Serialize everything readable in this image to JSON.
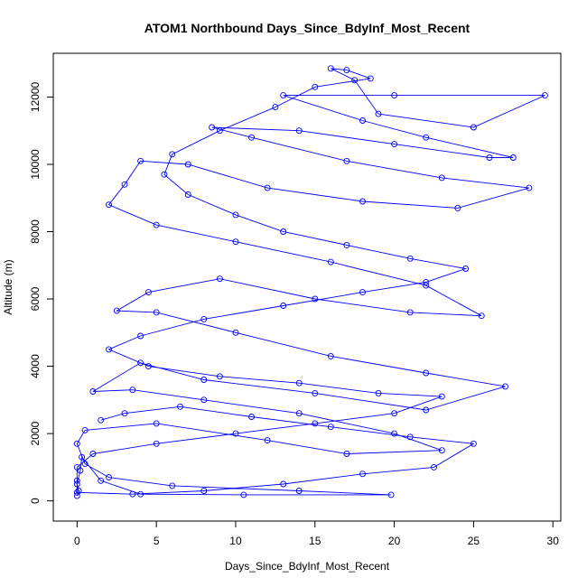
{
  "chart_data": {
    "type": "line",
    "title": "ATOM1 Northbound Days_Since_BdyInf_Most_Recent",
    "xlabel": "Days_Since_BdyInf_Most_Recent",
    "ylabel": "Altitude (m)",
    "xlim": [
      -1.5,
      30.5
    ],
    "ylim": [
      -600,
      13300
    ],
    "xticks": [
      0,
      5,
      10,
      15,
      20,
      25,
      30
    ],
    "yticks": [
      0,
      2000,
      4000,
      6000,
      8000,
      10000,
      12000
    ],
    "grid": false,
    "legend": "none",
    "series_color": "#0000ff",
    "marker": "open-circle",
    "series": [
      {
        "values_note": "",
        "points": [
          [
            0.0,
            150
          ],
          [
            0.1,
            300
          ],
          [
            0.0,
            500
          ],
          [
            0.2,
            900
          ],
          [
            0.3,
            1300
          ],
          [
            1.5,
            600
          ],
          [
            4.0,
            200
          ],
          [
            10.5,
            180
          ],
          [
            19.8,
            180
          ],
          [
            14.0,
            300
          ],
          [
            6.0,
            450
          ],
          [
            2.0,
            700
          ],
          [
            0.5,
            1100
          ],
          [
            0.0,
            1700
          ],
          [
            0.5,
            2100
          ],
          [
            5.0,
            2300
          ],
          [
            12.0,
            1800
          ],
          [
            17.0,
            1400
          ],
          [
            23.0,
            1500
          ],
          [
            20.0,
            2000
          ],
          [
            14.0,
            2600
          ],
          [
            8.0,
            3000
          ],
          [
            3.5,
            3300
          ],
          [
            1.0,
            3250
          ],
          [
            4.0,
            4100
          ],
          [
            8.0,
            3600
          ],
          [
            15.0,
            3200
          ],
          [
            22.0,
            2700
          ],
          [
            27.0,
            3400
          ],
          [
            22.0,
            3800
          ],
          [
            16.0,
            4300
          ],
          [
            10.0,
            5000
          ],
          [
            5.0,
            5600
          ],
          [
            2.5,
            5650
          ],
          [
            4.5,
            6200
          ],
          [
            9.0,
            6600
          ],
          [
            15.0,
            6000
          ],
          [
            21.0,
            5600
          ],
          [
            25.5,
            5500
          ],
          [
            22.0,
            6400
          ],
          [
            16.0,
            7100
          ],
          [
            10.0,
            7700
          ],
          [
            5.0,
            8200
          ],
          [
            2.0,
            8800
          ],
          [
            3.0,
            9400
          ],
          [
            4.0,
            10100
          ],
          [
            7.0,
            10000
          ],
          [
            12.0,
            9300
          ],
          [
            18.0,
            8900
          ],
          [
            24.0,
            8700
          ],
          [
            28.5,
            9300
          ],
          [
            23.0,
            9600
          ],
          [
            17.0,
            10100
          ],
          [
            11.0,
            10800
          ],
          [
            8.5,
            11100
          ],
          [
            14.0,
            11000
          ],
          [
            20.0,
            10600
          ],
          [
            26.0,
            10200
          ],
          [
            27.5,
            10200
          ],
          [
            22.0,
            10800
          ],
          [
            18.0,
            11300
          ],
          [
            13.0,
            12050
          ],
          [
            20.0,
            12050
          ],
          [
            29.5,
            12050
          ],
          [
            25.0,
            11100
          ],
          [
            19.0,
            11500
          ],
          [
            17.5,
            12500
          ],
          [
            16.0,
            12850
          ],
          [
            17.0,
            12800
          ],
          [
            18.5,
            12550
          ],
          [
            15.0,
            12300
          ],
          [
            12.5,
            11700
          ],
          [
            9.0,
            11000
          ],
          [
            6.0,
            10300
          ],
          [
            5.5,
            9700
          ],
          [
            7.0,
            9100
          ],
          [
            10.0,
            8500
          ],
          [
            13.0,
            8000
          ],
          [
            17.0,
            7600
          ],
          [
            21.0,
            7200
          ],
          [
            24.5,
            6900
          ],
          [
            22.0,
            6500
          ],
          [
            18.0,
            6200
          ],
          [
            13.0,
            5800
          ],
          [
            8.0,
            5400
          ],
          [
            4.0,
            4900
          ],
          [
            2.0,
            4500
          ],
          [
            4.5,
            4000
          ],
          [
            9.0,
            3700
          ],
          [
            14.0,
            3500
          ],
          [
            19.0,
            3200
          ],
          [
            23.0,
            3100
          ],
          [
            20.0,
            2600
          ],
          [
            15.0,
            2300
          ],
          [
            10.0,
            2000
          ],
          [
            5.0,
            1700
          ],
          [
            1.0,
            1400
          ],
          [
            0.0,
            1000
          ],
          [
            0.0,
            600
          ],
          [
            0.0,
            250
          ],
          [
            3.5,
            200
          ],
          [
            8.0,
            300
          ],
          [
            13.0,
            500
          ],
          [
            18.0,
            800
          ],
          [
            22.5,
            1000
          ],
          [
            25.0,
            1700
          ],
          [
            21.0,
            1900
          ],
          [
            16.0,
            2200
          ],
          [
            11.0,
            2500
          ],
          [
            6.5,
            2800
          ],
          [
            3.0,
            2600
          ],
          [
            1.5,
            2400
          ]
        ]
      }
    ]
  }
}
